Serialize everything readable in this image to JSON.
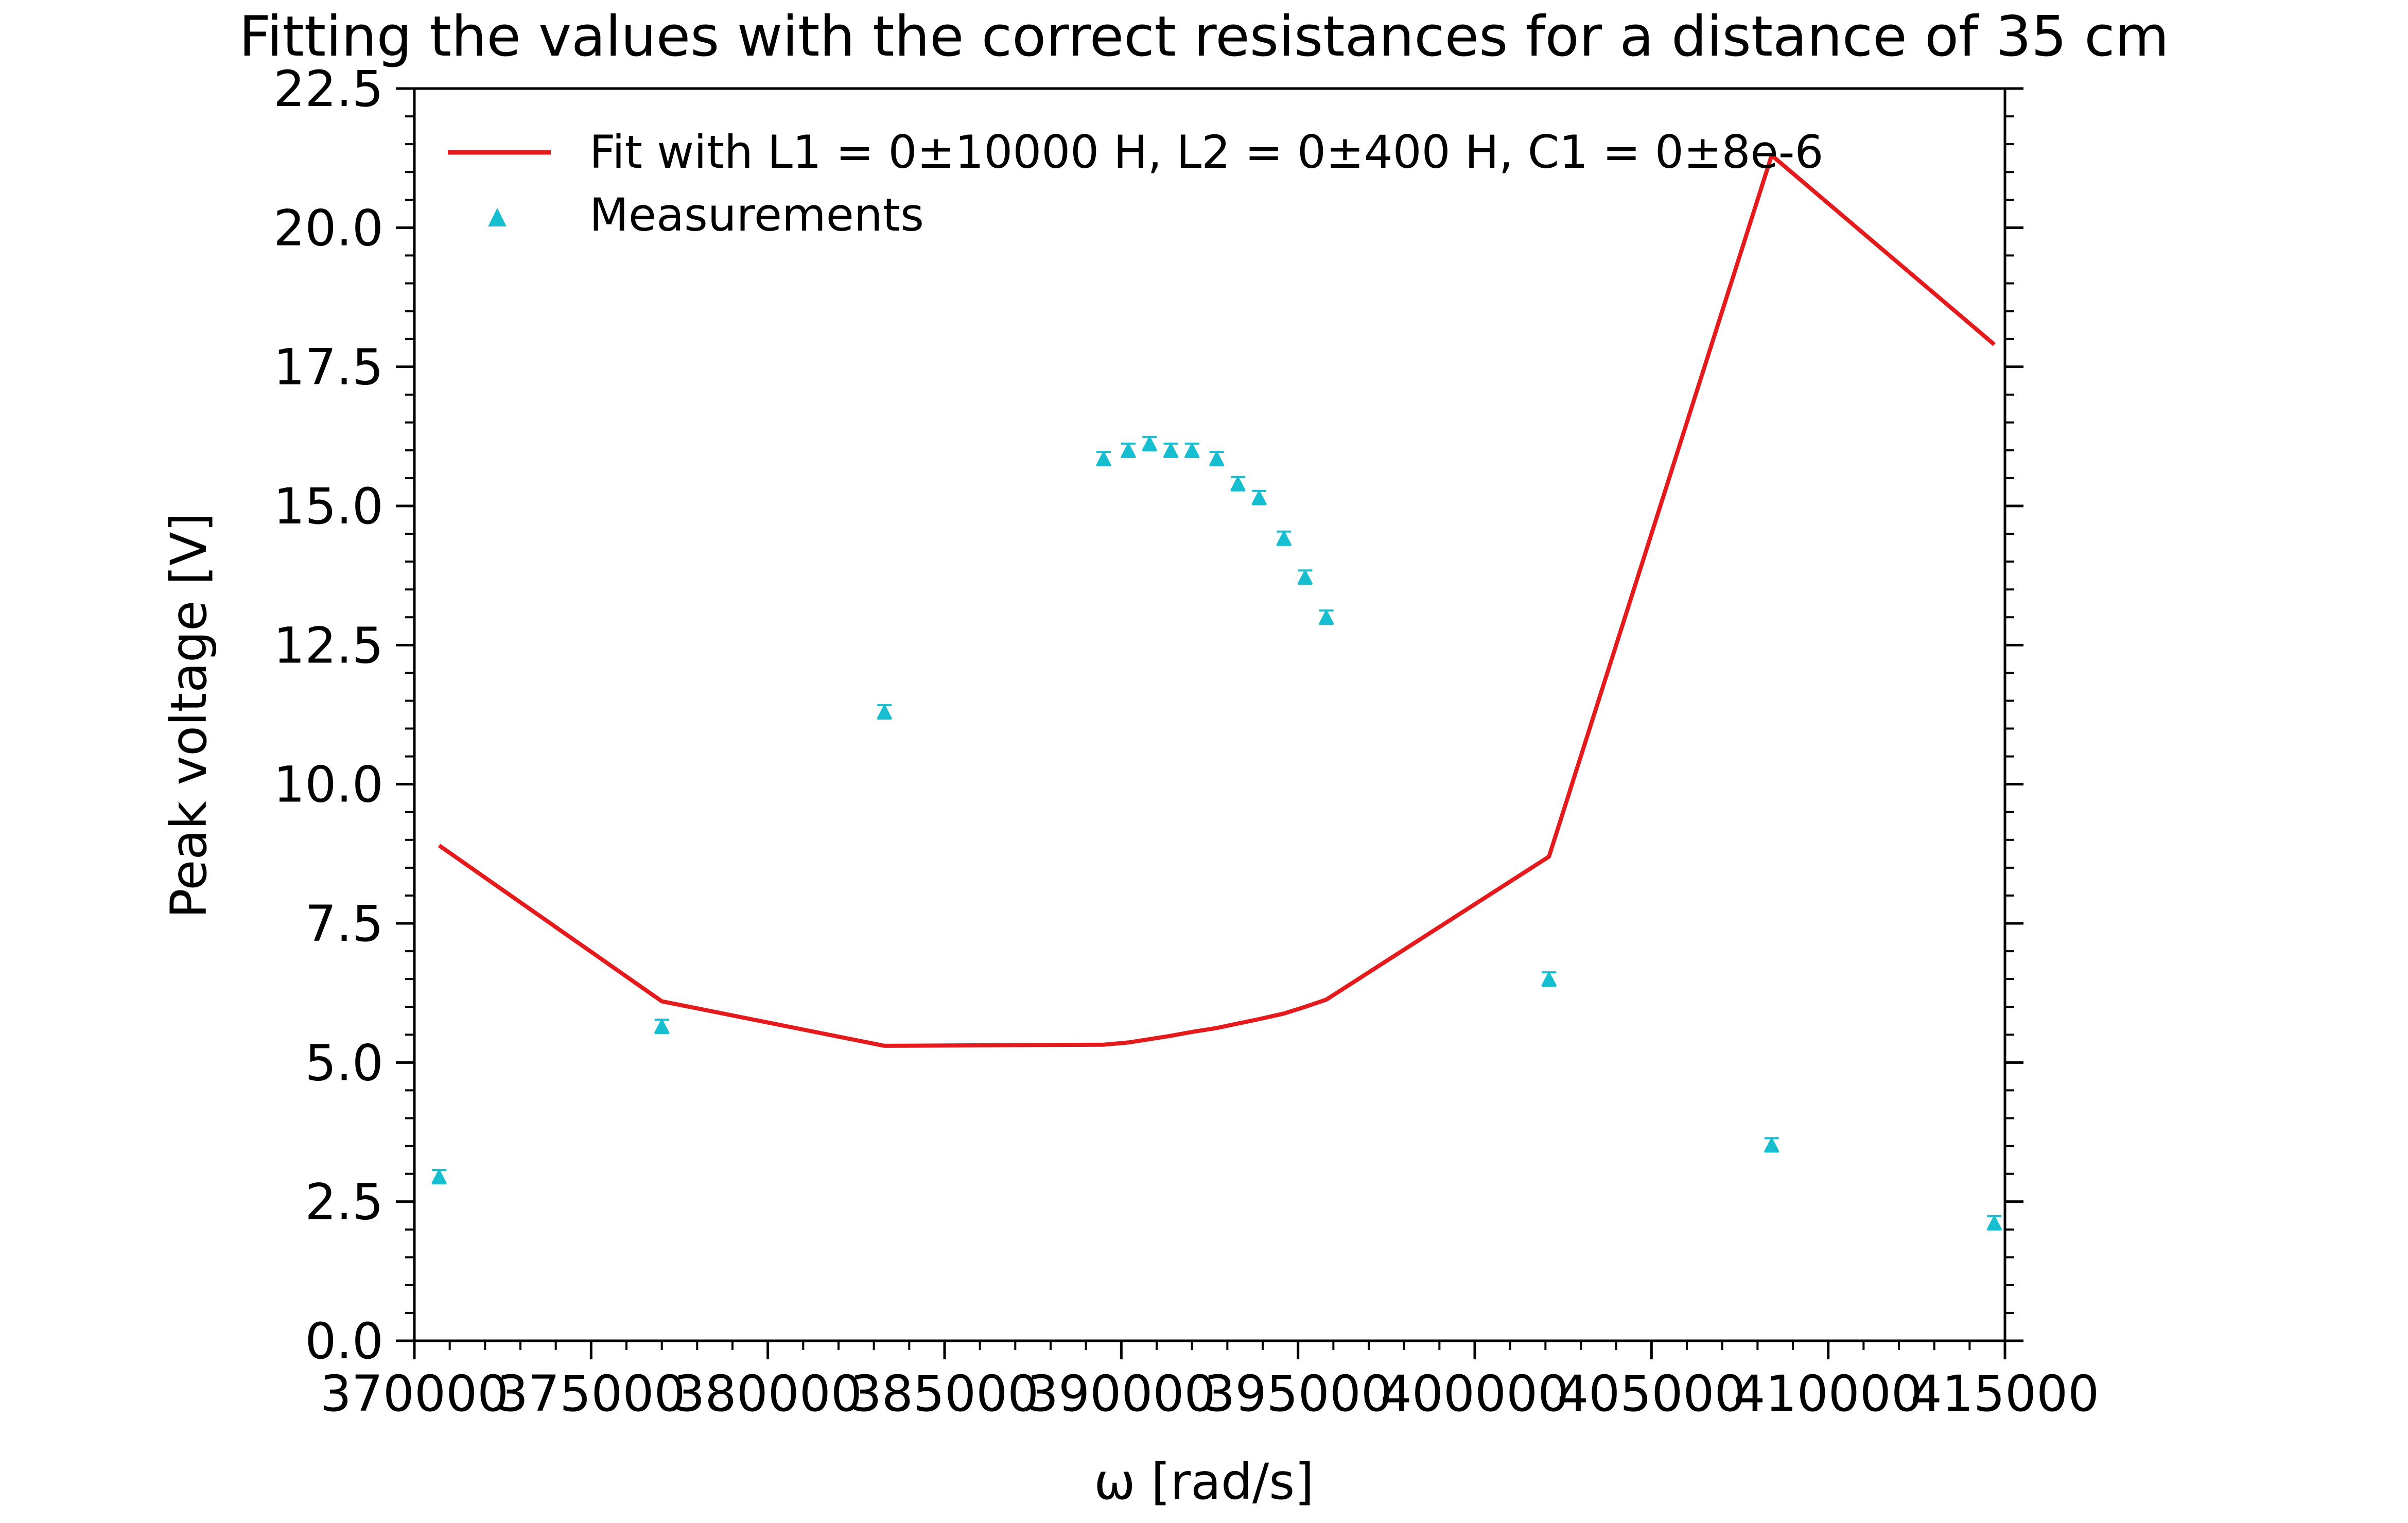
{
  "chart_data": {
    "type": "line",
    "title": "Fitting the values with the correct resistances for a distance of 35 cm",
    "xlabel": "ω [rad/s]",
    "ylabel": "Peak voltage [V]",
    "xlim": [
      370000,
      415000
    ],
    "ylim": [
      0.0,
      22.5
    ],
    "xticks": [
      370000,
      375000,
      380000,
      385000,
      390000,
      395000,
      400000,
      405000,
      410000,
      415000
    ],
    "xtick_labels": [
      "370000",
      "375000",
      "380000",
      "385000",
      "390000",
      "395000",
      "400000",
      "405000",
      "410000",
      "415000"
    ],
    "yticks": [
      0.0,
      2.5,
      5.0,
      7.5,
      10.0,
      12.5,
      15.0,
      17.5,
      20.0,
      22.5
    ],
    "ytick_labels": [
      "0.0",
      "2.5",
      "5.0",
      "7.5",
      "10.0",
      "12.5",
      "15.0",
      "17.5",
      "20.0",
      "22.5"
    ],
    "grid": false,
    "legend_position": "top-left",
    "series": [
      {
        "name": "Fit with L1 = 0±10000 H, L2 = 0±400 H, C1 = 0±8e-6",
        "kind": "line",
        "color": "#e41a1c",
        "x": [
          370700,
          377000,
          383300,
          389500,
          390200,
          390800,
          391400,
          392000,
          392700,
          393300,
          393900,
          394600,
          395200,
          395800,
          402100,
          408400,
          414700
        ],
        "y": [
          8.9,
          6.1,
          5.3,
          5.32,
          5.36,
          5.42,
          5.48,
          5.55,
          5.62,
          5.7,
          5.78,
          5.88,
          6.0,
          6.13,
          8.7,
          21.3,
          17.9
        ]
      },
      {
        "name": "Measurements",
        "kind": "scatter",
        "color": "#17becf",
        "x": [
          370700,
          377000,
          383300,
          389500,
          390200,
          390800,
          391400,
          392000,
          392700,
          393300,
          393900,
          394600,
          395200,
          395800,
          402100,
          408400,
          414700
        ],
        "y": [
          2.95,
          5.65,
          11.3,
          15.85,
          16.0,
          16.12,
          16.0,
          16.0,
          15.85,
          15.4,
          15.15,
          14.42,
          13.72,
          13.0,
          6.5,
          3.52,
          2.12
        ],
        "yerr": 0.12
      }
    ]
  }
}
